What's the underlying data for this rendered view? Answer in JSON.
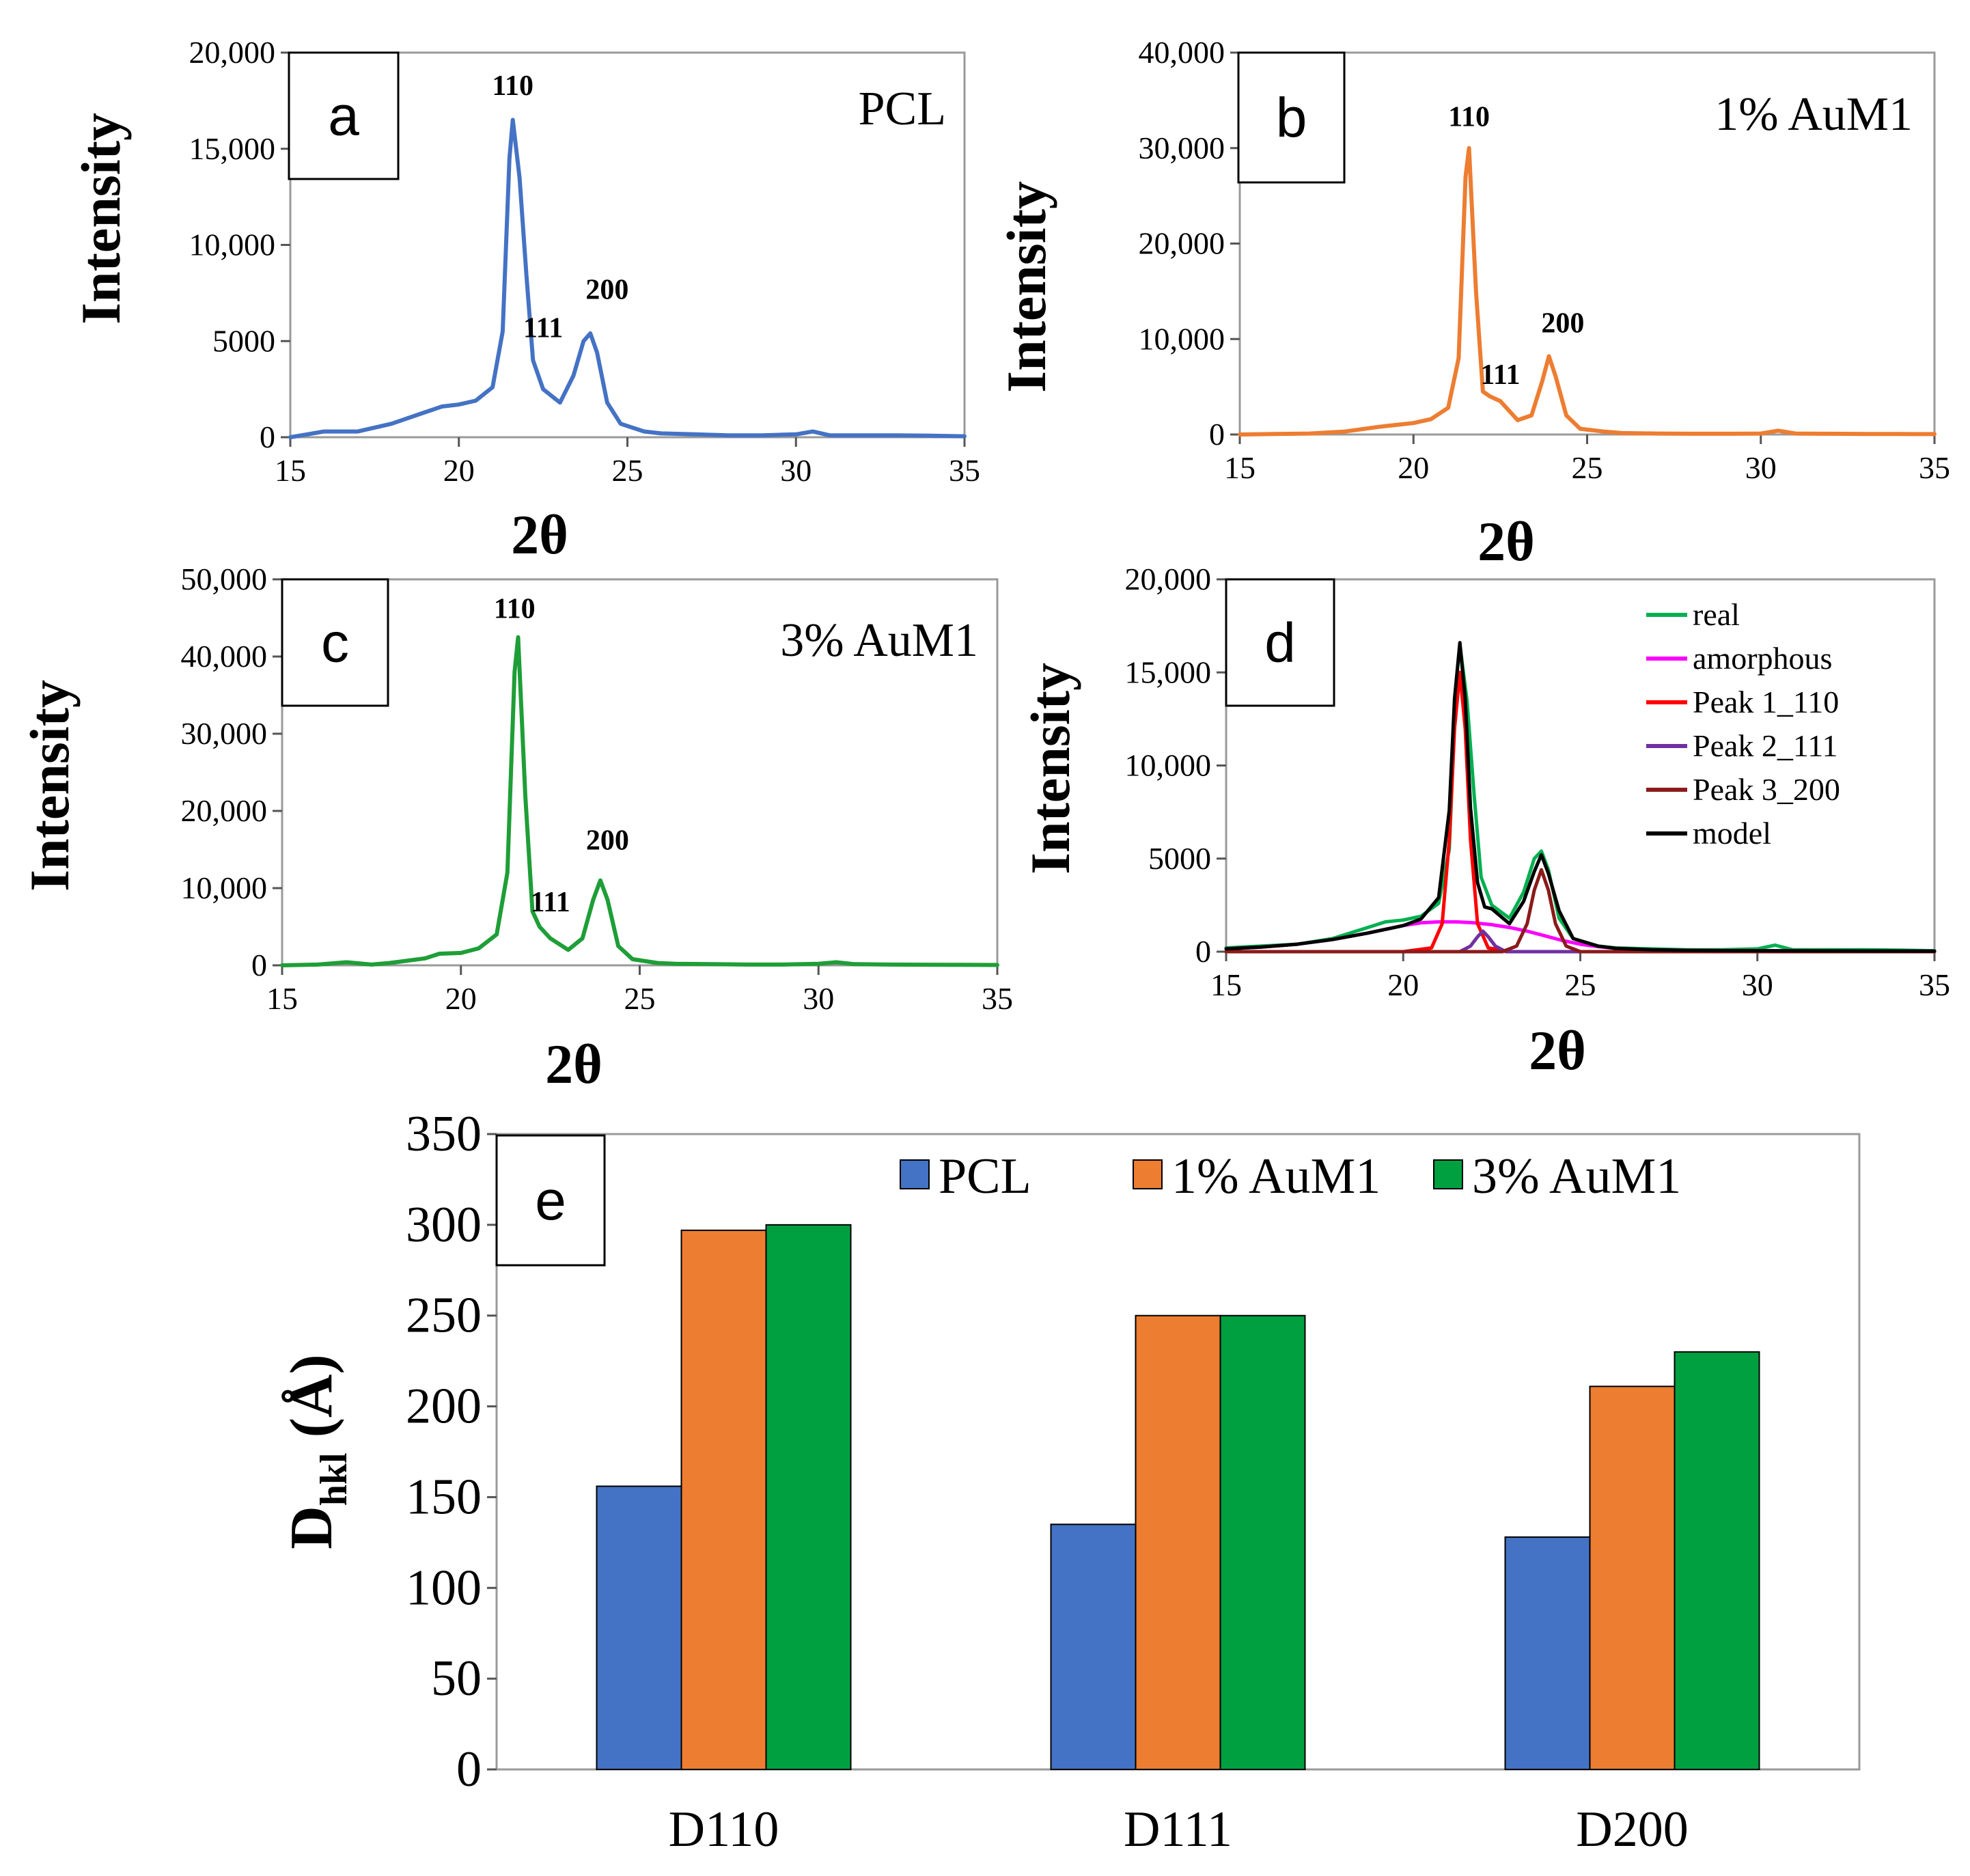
{
  "chart_data": [
    {
      "id": "a",
      "type": "line",
      "panel_letter": "a",
      "sample_label": "PCL",
      "xlabel": "2θ",
      "ylabel": "Intensity",
      "xlim": [
        15,
        35
      ],
      "ylim": [
        0,
        20000
      ],
      "x_ticks": [
        "15",
        "20",
        "25",
        "30",
        "35"
      ],
      "y_ticks": [
        "0",
        "5000",
        "10,000",
        "15,000",
        "20,000"
      ],
      "peak_labels": [
        {
          "text": "110",
          "x": 21.6,
          "y": 17800
        },
        {
          "text": "111",
          "x": 22.5,
          "y": 5200
        },
        {
          "text": "200",
          "x": 24.4,
          "y": 7200
        }
      ],
      "series": [
        {
          "name": "PCL",
          "color": "#4472C4",
          "x": [
            15,
            16,
            17,
            18,
            19,
            19.5,
            20,
            20.5,
            21,
            21.3,
            21.5,
            21.6,
            21.8,
            22,
            22.2,
            22.5,
            23,
            23.4,
            23.7,
            23.9,
            24.1,
            24.4,
            24.8,
            25.5,
            26,
            27,
            28,
            29,
            30,
            30.5,
            31,
            32,
            33,
            34,
            35
          ],
          "y": [
            0,
            300,
            300,
            700,
            1300,
            1600,
            1700,
            1900,
            2600,
            5500,
            14500,
            16500,
            13500,
            8500,
            4000,
            2500,
            1800,
            3200,
            5000,
            5400,
            4400,
            1800,
            700,
            300,
            200,
            150,
            100,
            100,
            150,
            300,
            100,
            100,
            100,
            80,
            50
          ]
        }
      ]
    },
    {
      "id": "b",
      "type": "line",
      "panel_letter": "b",
      "sample_label": "1% AuM1",
      "xlabel": "2θ",
      "ylabel": "Intensity",
      "xlim": [
        15,
        35
      ],
      "ylim": [
        0,
        40000
      ],
      "x_ticks": [
        "15",
        "20",
        "25",
        "30",
        "35"
      ],
      "y_ticks": [
        "0",
        "10,000",
        "20,000",
        "30,000",
        "40,000"
      ],
      "peak_labels": [
        {
          "text": "110",
          "x": 21.6,
          "y": 32300
        },
        {
          "text": "111",
          "x": 22.5,
          "y": 5300
        },
        {
          "text": "200",
          "x": 24.3,
          "y": 10700
        }
      ],
      "series": [
        {
          "name": "1% AuM1",
          "color": "#ED7D31",
          "x": [
            15,
            16,
            17,
            18,
            19,
            19.5,
            20,
            20.5,
            21,
            21.3,
            21.5,
            21.6,
            21.8,
            22,
            22.2,
            22.5,
            23,
            23.4,
            23.7,
            23.9,
            24.1,
            24.4,
            24.8,
            25.5,
            26,
            27,
            28,
            29,
            30,
            30.5,
            31,
            32,
            33,
            34,
            35
          ],
          "y": [
            0,
            50,
            100,
            300,
            800,
            1000,
            1200,
            1600,
            2800,
            8000,
            27000,
            30000,
            15000,
            4500,
            4000,
            3500,
            1500,
            2000,
            5500,
            8200,
            6000,
            2000,
            600,
            300,
            150,
            100,
            80,
            80,
            100,
            400,
            100,
            80,
            60,
            50,
            40
          ]
        }
      ]
    },
    {
      "id": "c",
      "type": "line",
      "panel_letter": "c",
      "sample_label": "3% AuM1",
      "xlabel": "2θ",
      "ylabel": "Intensity",
      "xlim": [
        15,
        35
      ],
      "ylim": [
        0,
        50000
      ],
      "x_ticks": [
        "15",
        "20",
        "25",
        "30",
        "35"
      ],
      "y_ticks": [
        "0",
        "10,000",
        "20,000",
        "30,000",
        "40,000",
        "50,000"
      ],
      "peak_labels": [
        {
          "text": "110",
          "x": 21.5,
          "y": 45000
        },
        {
          "text": "111",
          "x": 22.5,
          "y": 7000
        },
        {
          "text": "200",
          "x": 24.1,
          "y": 15000
        }
      ],
      "series": [
        {
          "name": "3% AuM1",
          "color": "#1E9E37",
          "x": [
            15,
            16,
            16.8,
            17.5,
            18,
            19,
            19.4,
            20,
            20.5,
            21,
            21.3,
            21.5,
            21.6,
            21.8,
            22,
            22.2,
            22.5,
            23,
            23.4,
            23.7,
            23.9,
            24.1,
            24.4,
            24.8,
            25.5,
            26,
            27,
            28,
            29,
            30,
            30.5,
            31,
            32,
            33,
            34,
            35
          ],
          "y": [
            0,
            100,
            400,
            100,
            300,
            900,
            1500,
            1600,
            2200,
            4000,
            12000,
            38000,
            42500,
            22000,
            7000,
            5000,
            3500,
            2000,
            3500,
            8500,
            11000,
            8500,
            2500,
            800,
            300,
            200,
            150,
            100,
            100,
            200,
            400,
            150,
            100,
            80,
            60,
            40
          ]
        }
      ]
    },
    {
      "id": "d",
      "type": "line",
      "panel_letter": "d",
      "xlabel": "2θ",
      "ylabel": "Intensity",
      "xlim": [
        15,
        35
      ],
      "ylim": [
        0,
        20000
      ],
      "x_ticks": [
        "15",
        "20",
        "25",
        "30",
        "35"
      ],
      "y_ticks": [
        "0",
        "5000",
        "10,000",
        "15,000",
        "20,000"
      ],
      "series": [
        {
          "name": "real",
          "color": "#00B050",
          "x": [
            15,
            16,
            17,
            18,
            19,
            19.5,
            20,
            20.5,
            21,
            21.3,
            21.5,
            21.6,
            21.8,
            22,
            22.2,
            22.5,
            23,
            23.4,
            23.7,
            23.9,
            24.1,
            24.4,
            24.8,
            25.5,
            26,
            27,
            28,
            29,
            30,
            30.5,
            31,
            32,
            33,
            34,
            35
          ],
          "y": [
            200,
            300,
            400,
            700,
            1300,
            1600,
            1700,
            1900,
            2600,
            5500,
            14500,
            16500,
            13500,
            8500,
            4000,
            2500,
            1800,
            3200,
            5000,
            5400,
            4400,
            1800,
            700,
            300,
            200,
            150,
            100,
            100,
            150,
            350,
            100,
            100,
            100,
            80,
            50
          ]
        },
        {
          "name": "amorphous",
          "color": "#FF00FF",
          "x": [
            15,
            16,
            17,
            18,
            19,
            20,
            20.5,
            21,
            21.5,
            22,
            22.5,
            23,
            23.5,
            24,
            24.5,
            25,
            25.5,
            26,
            27,
            28,
            30,
            32,
            35
          ],
          "y": [
            150,
            250,
            400,
            650,
            1000,
            1400,
            1550,
            1600,
            1600,
            1550,
            1450,
            1300,
            1100,
            850,
            600,
            400,
            270,
            180,
            100,
            70,
            50,
            40,
            30
          ]
        },
        {
          "name": "Peak 1_110",
          "color": "#FF0000",
          "x": [
            15,
            20,
            20.8,
            21.1,
            21.3,
            21.45,
            21.6,
            21.75,
            21.9,
            22.1,
            22.4,
            23,
            35
          ],
          "y": [
            0,
            0,
            200,
            1500,
            6000,
            12000,
            15000,
            12000,
            6000,
            1500,
            200,
            0,
            0
          ]
        },
        {
          "name": "Peak 2_111",
          "color": "#7030A0",
          "x": [
            15,
            21.6,
            21.9,
            22.1,
            22.25,
            22.4,
            22.6,
            22.9,
            35
          ],
          "y": [
            0,
            0,
            300,
            800,
            1100,
            800,
            300,
            0,
            0
          ]
        },
        {
          "name": "Peak 3_200",
          "color": "#8B1A1A",
          "x": [
            15,
            22.8,
            23.2,
            23.5,
            23.7,
            23.9,
            24.1,
            24.3,
            24.6,
            25,
            35
          ],
          "y": [
            0,
            0,
            300,
            1500,
            3300,
            4400,
            3300,
            1500,
            300,
            0,
            0
          ]
        },
        {
          "name": "model",
          "color": "#000000",
          "x": [
            15,
            16,
            17,
            18,
            19,
            20,
            20.5,
            21,
            21.3,
            21.45,
            21.6,
            21.75,
            21.9,
            22.1,
            22.3,
            22.5,
            23,
            23.4,
            23.7,
            23.9,
            24.1,
            24.4,
            24.8,
            25.5,
            26,
            27,
            28,
            30,
            32,
            35
          ],
          "y": [
            150,
            250,
            400,
            650,
            1000,
            1400,
            1750,
            2900,
            7600,
            13600,
            16600,
            13600,
            7700,
            3700,
            2400,
            2300,
            1500,
            2700,
            4300,
            5200,
            4200,
            2200,
            700,
            300,
            180,
            100,
            70,
            50,
            40,
            30
          ]
        }
      ],
      "legend": [
        "real",
        "amorphous",
        "Peak 1_110",
        "Peak 2_111",
        "Peak 3_200",
        "model"
      ]
    },
    {
      "id": "e",
      "type": "bar",
      "panel_letter": "e",
      "ylabel_main": "D",
      "ylabel_sub": "hkl",
      "ylabel_rest": " (Å)",
      "categories": [
        "D110",
        "D111",
        "D200"
      ],
      "ylim": [
        0,
        350
      ],
      "y_ticks": [
        "0",
        "50",
        "100",
        "150",
        "200",
        "250",
        "300",
        "350"
      ],
      "series": [
        {
          "name": "PCL",
          "color": "#4472C4",
          "values": [
            156,
            135,
            128
          ]
        },
        {
          "name": "1% AuM1",
          "color": "#ED7D31",
          "values": [
            297,
            250,
            211
          ]
        },
        {
          "name": "3% AuM1",
          "color": "#00A040",
          "values": [
            300,
            250,
            230
          ]
        }
      ],
      "legend": [
        "PCL",
        "1% AuM1",
        "3% AuM1"
      ]
    }
  ]
}
